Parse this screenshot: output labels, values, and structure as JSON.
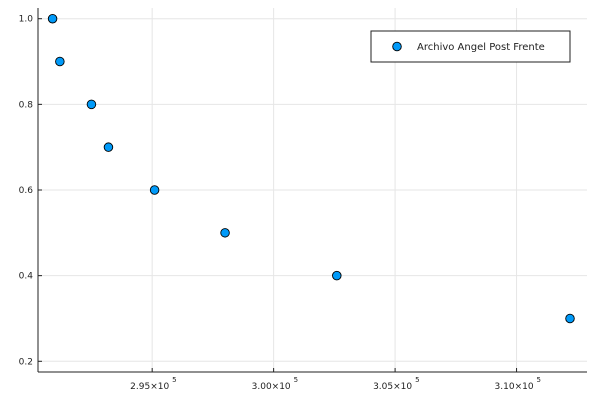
{
  "chart_data": {
    "type": "scatter",
    "title": "",
    "xlabel": "",
    "ylabel": "",
    "xlim": [
      290300,
      312900
    ],
    "ylim": [
      0.175,
      1.025
    ],
    "grid": true,
    "legend_position": "top-right",
    "x_ticks": [
      {
        "value": 295000,
        "mantissa": "2.95×10",
        "exponent": "5"
      },
      {
        "value": 300000,
        "mantissa": "3.00×10",
        "exponent": "5"
      },
      {
        "value": 305000,
        "mantissa": "3.05×10",
        "exponent": "5"
      },
      {
        "value": 310000,
        "mantissa": "3.10×10",
        "exponent": "5"
      }
    ],
    "y_ticks": [
      {
        "value": 0.2,
        "label": "0.2"
      },
      {
        "value": 0.4,
        "label": "0.4"
      },
      {
        "value": 0.6,
        "label": "0.6"
      },
      {
        "value": 0.8,
        "label": "0.8"
      },
      {
        "value": 1.0,
        "label": "1.0"
      }
    ],
    "series": [
      {
        "name": "Archivo Angel Post Frente",
        "color": "#009af9",
        "points": [
          {
            "x": 290900,
            "y": 1.0
          },
          {
            "x": 291200,
            "y": 0.9
          },
          {
            "x": 292500,
            "y": 0.8
          },
          {
            "x": 293200,
            "y": 0.7
          },
          {
            "x": 295100,
            "y": 0.6
          },
          {
            "x": 298000,
            "y": 0.5
          },
          {
            "x": 302600,
            "y": 0.4
          },
          {
            "x": 312200,
            "y": 0.3
          }
        ]
      }
    ]
  }
}
